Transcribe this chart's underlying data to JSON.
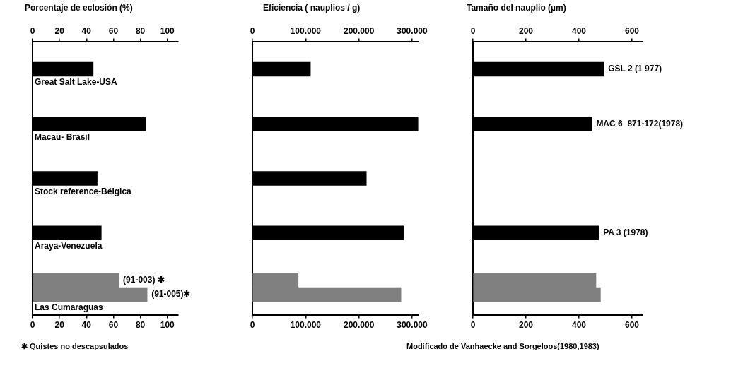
{
  "chart_data": [
    {
      "type": "bar",
      "orientation": "horizontal",
      "title": "Porcentaje de eclosión (%)",
      "categories": [
        "Great Salt Lake-USA",
        "Macau- Brasil",
        "Stock reference-Bélgica",
        "Araya-Venezuela",
        "Las Cumaraguas"
      ],
      "series": [
        {
          "color": "#000000",
          "values": [
            45,
            84,
            48,
            51,
            null
          ]
        },
        {
          "name": "(91-003) ✱",
          "color": "#808080",
          "values": [
            null,
            null,
            null,
            null,
            64
          ]
        },
        {
          "name": "(91-005)✱",
          "color": "#808080",
          "values": [
            null,
            null,
            null,
            null,
            85
          ]
        }
      ],
      "xlim": [
        0,
        108
      ],
      "xticks": [
        0,
        20,
        40,
        60,
        80,
        100
      ],
      "x2lim": [
        0,
        108
      ],
      "x2ticks": [
        0,
        20,
        40,
        60,
        80,
        100
      ],
      "annotations": [
        "✱ Quistes no descapsulados"
      ]
    },
    {
      "type": "bar",
      "orientation": "horizontal",
      "title": "Eficiencia ( nauplios / g)",
      "categories": [
        null,
        null,
        null,
        null,
        null
      ],
      "series": [
        {
          "color": "#000000",
          "values": [
            109000,
            311000,
            214000,
            284000,
            null
          ]
        },
        {
          "color": "#808080",
          "values": [
            null,
            null,
            null,
            null,
            86000
          ]
        },
        {
          "color": "#808080",
          "values": [
            null,
            null,
            null,
            null,
            279000
          ]
        }
      ],
      "xlim": [
        0,
        312000
      ],
      "xticks": [
        0,
        {
          "value": 100000,
          "label": "100.000"
        },
        {
          "value": 200000,
          "label": "200.000"
        },
        {
          "value": 300000,
          "label": "300.000"
        }
      ],
      "x2lim": [
        0,
        312000
      ],
      "x2ticks": [
        0,
        {
          "value": 100000,
          "label": "100.000"
        },
        {
          "value": 200000,
          "label": "200.000"
        },
        {
          "value": 300000,
          "label": "300.000"
        }
      ]
    },
    {
      "type": "bar",
      "orientation": "horizontal",
      "title": "Tamaño del nauplio (µm)",
      "categories": [
        null,
        null,
        null,
        null,
        null
      ],
      "series": [
        {
          "color": "#000000",
          "values": [
            494,
            449,
            null,
            475,
            null
          ],
          "value_labels": [
            "GSL 2 (1 977)",
            "MAC 6  871-172(1978)",
            null,
            "PA 3 (1978)",
            null
          ]
        },
        {
          "color": "#808080",
          "values": [
            null,
            null,
            null,
            null,
            464
          ]
        },
        {
          "color": "#808080",
          "values": [
            null,
            null,
            null,
            null,
            481
          ]
        }
      ],
      "xlim": [
        0,
        640
      ],
      "xticks": [
        0,
        200,
        400,
        600
      ],
      "x2lim": [
        0,
        640
      ],
      "x2ticks": [
        0,
        200,
        400,
        600
      ],
      "annotations": [
        "Modificado de Vanhaecke and Sorgeloos(1980,1983)"
      ]
    }
  ]
}
